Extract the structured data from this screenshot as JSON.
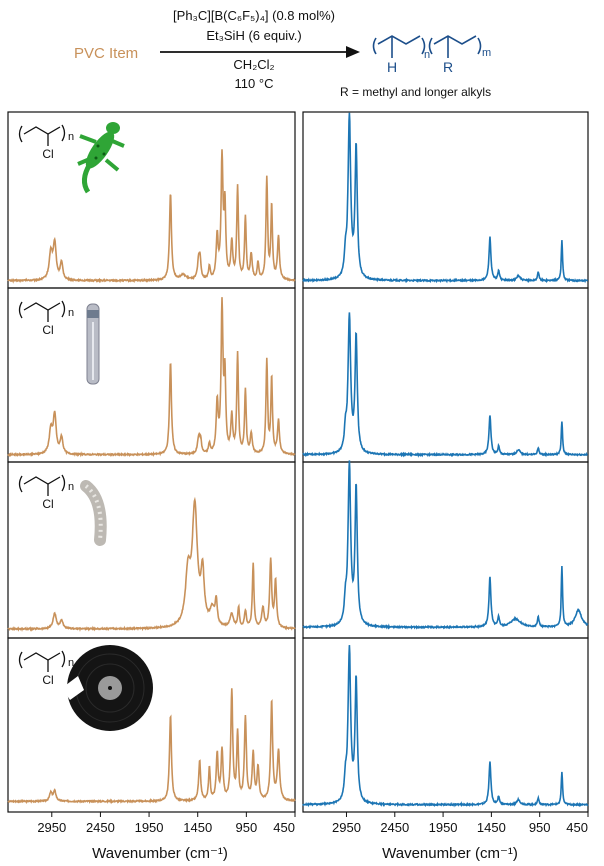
{
  "reaction": {
    "reactant": "PVC Item",
    "catalyst": "[Ph₃C][B(C₆F₅)₄] (0.8 mol%)",
    "silane": "Et₃SiH (6 equiv.)",
    "solvent": "CH₂Cl₂",
    "temperature": "110 °C",
    "r_group_note": "R = methyl and longer alkyls",
    "product_h_label": "H",
    "product_r_label": "R",
    "product_sub_n": "n",
    "product_sub_m": "m"
  },
  "pvc_structure": {
    "cl_label": "Cl",
    "sub_n": "n"
  },
  "items": [
    "lizard-toy",
    "tube",
    "flexible-hose",
    "vinyl-record"
  ],
  "colors": {
    "pvc": "#C8915A",
    "product": "#1C75B4",
    "product_text": "#1C4E8A",
    "reactant_text": "#C8915A"
  },
  "chart_data": [
    {
      "type": "line",
      "panel": "pvc-lizard",
      "xlabel": "Wavenumber (cm⁻¹)",
      "xlim": [
        3400,
        450
      ],
      "x_reversed": true,
      "tick_labels": [
        "2950",
        "2450",
        "1950",
        "1450",
        "950",
        "450"
      ],
      "color": "#C8915A",
      "baseline": 0.02,
      "peaks": [
        [
          2960,
          0.16,
          20
        ],
        [
          2920,
          0.21,
          18
        ],
        [
          2850,
          0.1,
          16
        ],
        [
          1730,
          0.52,
          12
        ],
        [
          1600,
          0.03,
          40
        ],
        [
          1440,
          0.12,
          14
        ],
        [
          1425,
          0.1,
          10
        ],
        [
          1330,
          0.08,
          10
        ],
        [
          1250,
          0.25,
          12
        ],
        [
          1200,
          0.72,
          12
        ],
        [
          1170,
          0.42,
          10
        ],
        [
          1100,
          0.22,
          12
        ],
        [
          1040,
          0.55,
          10
        ],
        [
          960,
          0.37,
          10
        ],
        [
          900,
          0.15,
          12
        ],
        [
          830,
          0.1,
          10
        ],
        [
          740,
          0.6,
          10
        ],
        [
          690,
          0.44,
          10
        ],
        [
          620,
          0.26,
          12
        ]
      ]
    },
    {
      "type": "line",
      "panel": "product-lizard",
      "xlabel": "Wavenumber (cm⁻¹)",
      "xlim": [
        3400,
        450
      ],
      "x_reversed": true,
      "tick_labels": [
        "2950",
        "2450",
        "1950",
        "1450",
        "950",
        "450"
      ],
      "color": "#1C75B4",
      "baseline": 0.02,
      "peaks": [
        [
          2960,
          0.12,
          14
        ],
        [
          2920,
          0.96,
          16
        ],
        [
          2850,
          0.78,
          14
        ],
        [
          1465,
          0.26,
          12
        ],
        [
          1375,
          0.06,
          10
        ],
        [
          1170,
          0.03,
          20
        ],
        [
          965,
          0.05,
          10
        ],
        [
          720,
          0.24,
          8
        ]
      ]
    },
    {
      "type": "line",
      "panel": "pvc-tube",
      "xlabel": "Wavenumber (cm⁻¹)",
      "xlim": [
        3400,
        450
      ],
      "x_reversed": true,
      "tick_labels": [
        "2950",
        "2450",
        "1950",
        "1450",
        "950",
        "450"
      ],
      "color": "#C8915A",
      "baseline": 0.02,
      "peaks": [
        [
          2960,
          0.14,
          20
        ],
        [
          2920,
          0.23,
          18
        ],
        [
          2850,
          0.1,
          16
        ],
        [
          1730,
          0.56,
          12
        ],
        [
          1440,
          0.1,
          14
        ],
        [
          1420,
          0.08,
          10
        ],
        [
          1330,
          0.06,
          10
        ],
        [
          1250,
          0.3,
          12
        ],
        [
          1200,
          0.88,
          12
        ],
        [
          1170,
          0.44,
          10
        ],
        [
          1100,
          0.22,
          12
        ],
        [
          1040,
          0.6,
          10
        ],
        [
          960,
          0.38,
          10
        ],
        [
          900,
          0.12,
          12
        ],
        [
          740,
          0.56,
          10
        ],
        [
          690,
          0.46,
          10
        ],
        [
          620,
          0.2,
          12
        ]
      ]
    },
    {
      "type": "line",
      "panel": "product-tube",
      "xlabel": "Wavenumber (cm⁻¹)",
      "xlim": [
        3400,
        450
      ],
      "x_reversed": true,
      "tick_labels": [
        "2950",
        "2450",
        "1950",
        "1450",
        "950",
        "450"
      ],
      "color": "#1C75B4",
      "baseline": 0.02,
      "peaks": [
        [
          2960,
          0.12,
          14
        ],
        [
          2920,
          0.82,
          16
        ],
        [
          2850,
          0.7,
          14
        ],
        [
          1465,
          0.24,
          12
        ],
        [
          1375,
          0.05,
          10
        ],
        [
          1170,
          0.03,
          20
        ],
        [
          965,
          0.04,
          10
        ],
        [
          720,
          0.2,
          8
        ]
      ]
    },
    {
      "type": "line",
      "panel": "pvc-hose",
      "xlabel": "Wavenumber (cm⁻¹)",
      "xlim": [
        3400,
        450
      ],
      "x_reversed": true,
      "tick_labels": [
        "2950",
        "2450",
        "1950",
        "1450",
        "950",
        "450"
      ],
      "color": "#C8915A",
      "baseline": 0.03,
      "peaks": [
        [
          2920,
          0.09,
          20
        ],
        [
          2850,
          0.05,
          16
        ],
        [
          1550,
          0.3,
          30
        ],
        [
          1480,
          0.7,
          32
        ],
        [
          1400,
          0.3,
          20
        ],
        [
          1300,
          0.1,
          30
        ],
        [
          1260,
          0.14,
          12
        ],
        [
          1100,
          0.08,
          20
        ],
        [
          1030,
          0.12,
          10
        ],
        [
          960,
          0.1,
          12
        ],
        [
          880,
          0.38,
          10
        ],
        [
          780,
          0.12,
          14
        ],
        [
          700,
          0.4,
          12
        ],
        [
          650,
          0.28,
          12
        ]
      ]
    },
    {
      "type": "line",
      "panel": "product-hose",
      "xlabel": "Wavenumber (cm⁻¹)",
      "xlim": [
        3400,
        450
      ],
      "x_reversed": true,
      "tick_labels": [
        "2950",
        "2450",
        "1950",
        "1450",
        "950",
        "450"
      ],
      "color": "#1C75B4",
      "baseline": 0.04,
      "peaks": [
        [
          2960,
          0.12,
          14
        ],
        [
          2920,
          0.95,
          16
        ],
        [
          2850,
          0.82,
          14
        ],
        [
          1465,
          0.3,
          12
        ],
        [
          1375,
          0.06,
          10
        ],
        [
          1200,
          0.05,
          60
        ],
        [
          965,
          0.06,
          10
        ],
        [
          720,
          0.36,
          8
        ],
        [
          550,
          0.1,
          40
        ]
      ]
    },
    {
      "type": "line",
      "panel": "pvc-record",
      "xlabel": "Wavenumber (cm⁻¹)",
      "xlim": [
        3400,
        450
      ],
      "x_reversed": true,
      "tick_labels": [
        "2950",
        "2450",
        "1950",
        "1450",
        "950",
        "450"
      ],
      "color": "#C8915A",
      "baseline": 0.04,
      "peaks": [
        [
          2960,
          0.05,
          16
        ],
        [
          2920,
          0.06,
          16
        ],
        [
          1730,
          0.52,
          12
        ],
        [
          1430,
          0.24,
          12
        ],
        [
          1330,
          0.2,
          10
        ],
        [
          1250,
          0.28,
          12
        ],
        [
          1200,
          0.3,
          12
        ],
        [
          1100,
          0.66,
          12
        ],
        [
          1040,
          0.4,
          10
        ],
        [
          960,
          0.5,
          12
        ],
        [
          880,
          0.28,
          12
        ],
        [
          830,
          0.2,
          12
        ],
        [
          690,
          0.6,
          12
        ],
        [
          620,
          0.3,
          14
        ]
      ]
    },
    {
      "type": "line",
      "panel": "product-record",
      "xlabel": "Wavenumber (cm⁻¹)",
      "xlim": [
        3400,
        450
      ],
      "x_reversed": true,
      "tick_labels": [
        "2950",
        "2450",
        "1950",
        "1450",
        "950",
        "450"
      ],
      "color": "#1C75B4",
      "baseline": 0.02,
      "peaks": [
        [
          2960,
          0.12,
          14
        ],
        [
          2920,
          0.92,
          16
        ],
        [
          2850,
          0.74,
          14
        ],
        [
          1465,
          0.26,
          12
        ],
        [
          1375,
          0.05,
          10
        ],
        [
          1170,
          0.03,
          20
        ],
        [
          965,
          0.04,
          10
        ],
        [
          720,
          0.2,
          8
        ]
      ]
    }
  ]
}
